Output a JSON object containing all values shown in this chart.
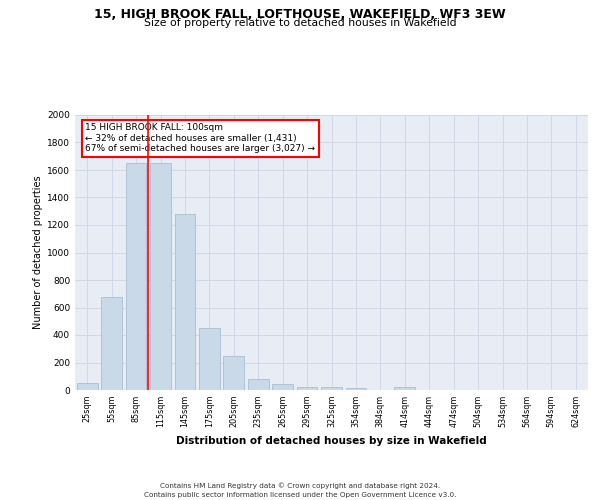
{
  "title": "15, HIGH BROOK FALL, LOFTHOUSE, WAKEFIELD, WF3 3EW",
  "subtitle": "Size of property relative to detached houses in Wakefield",
  "xlabel": "Distribution of detached houses by size in Wakefield",
  "ylabel": "Number of detached properties",
  "categories": [
    "25sqm",
    "55sqm",
    "85sqm",
    "115sqm",
    "145sqm",
    "175sqm",
    "205sqm",
    "235sqm",
    "265sqm",
    "295sqm",
    "325sqm",
    "354sqm",
    "384sqm",
    "414sqm",
    "444sqm",
    "474sqm",
    "504sqm",
    "534sqm",
    "564sqm",
    "594sqm",
    "624sqm"
  ],
  "values": [
    50,
    680,
    1650,
    1650,
    1280,
    450,
    250,
    80,
    45,
    25,
    20,
    15,
    0,
    20,
    0,
    0,
    0,
    0,
    0,
    0,
    0
  ],
  "bar_color": "#c9d9e8",
  "bar_edge_color": "#a0b8cc",
  "grid_color": "#d0d8e8",
  "bg_color": "#e8edf5",
  "annotation_text_line1": "15 HIGH BROOK FALL: 100sqm",
  "annotation_text_line2": "← 32% of detached houses are smaller (1,431)",
  "annotation_text_line3": "67% of semi-detached houses are larger (3,027) →",
  "red_line_x": 2.5,
  "footer_line1": "Contains HM Land Registry data © Crown copyright and database right 2024.",
  "footer_line2": "Contains public sector information licensed under the Open Government Licence v3.0.",
  "ylim": [
    0,
    2000
  ],
  "yticks": [
    0,
    200,
    400,
    600,
    800,
    1000,
    1200,
    1400,
    1600,
    1800,
    2000
  ]
}
